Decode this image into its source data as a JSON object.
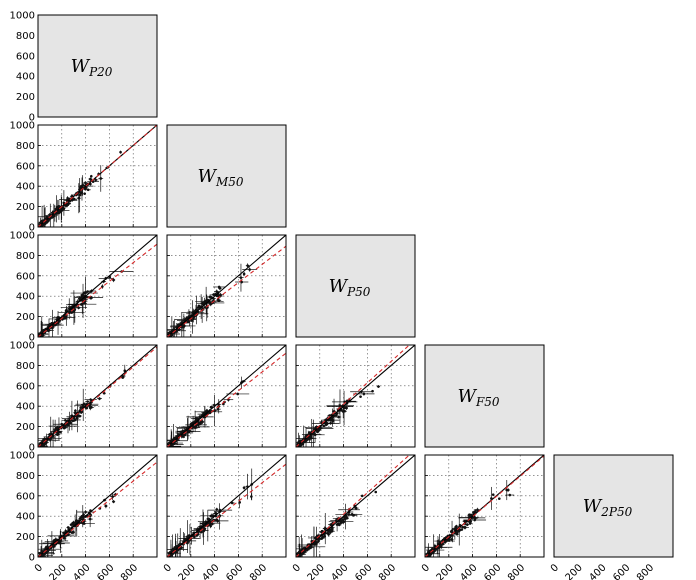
{
  "chart_data": {
    "type": "scatter",
    "layout": "lower-triangle pairwise matrix",
    "variables": [
      {
        "base": "W",
        "sub": "P20"
      },
      {
        "base": "W",
        "sub": "M50"
      },
      {
        "base": "W",
        "sub": "P50"
      },
      {
        "base": "W",
        "sub": "F50"
      },
      {
        "base": "W",
        "sub": "2P50"
      }
    ],
    "axis_range": [
      0,
      1000
    ],
    "ticks": [
      0,
      200,
      400,
      600,
      800,
      1000
    ],
    "y_tick_labels": [
      "0",
      "200",
      "400",
      "600",
      "800",
      "1000"
    ],
    "x_tick_labels": [
      "0",
      "200",
      "400",
      "600",
      "800"
    ],
    "grid": true,
    "identity_line": {
      "color": "#000000",
      "style": "solid"
    },
    "fit_line": {
      "color": "#d62728",
      "style": "dashed"
    },
    "panels": [
      {
        "row": 1,
        "col": 0,
        "fit_slope": 1.0,
        "seed": 11
      },
      {
        "row": 2,
        "col": 0,
        "fit_slope": 0.91,
        "seed": 23
      },
      {
        "row": 2,
        "col": 1,
        "fit_slope": 0.89,
        "seed": 37
      },
      {
        "row": 3,
        "col": 0,
        "fit_slope": 0.98,
        "seed": 41
      },
      {
        "row": 3,
        "col": 1,
        "fit_slope": 0.92,
        "seed": 53
      },
      {
        "row": 3,
        "col": 2,
        "fit_slope": 1.05,
        "seed": 67
      },
      {
        "row": 4,
        "col": 0,
        "fit_slope": 0.93,
        "seed": 71
      },
      {
        "row": 4,
        "col": 1,
        "fit_slope": 0.91,
        "seed": 83
      },
      {
        "row": 4,
        "col": 2,
        "fit_slope": 1.05,
        "seed": 97
      },
      {
        "row": 4,
        "col": 3,
        "fit_slope": 0.99,
        "seed": 101
      }
    ]
  }
}
